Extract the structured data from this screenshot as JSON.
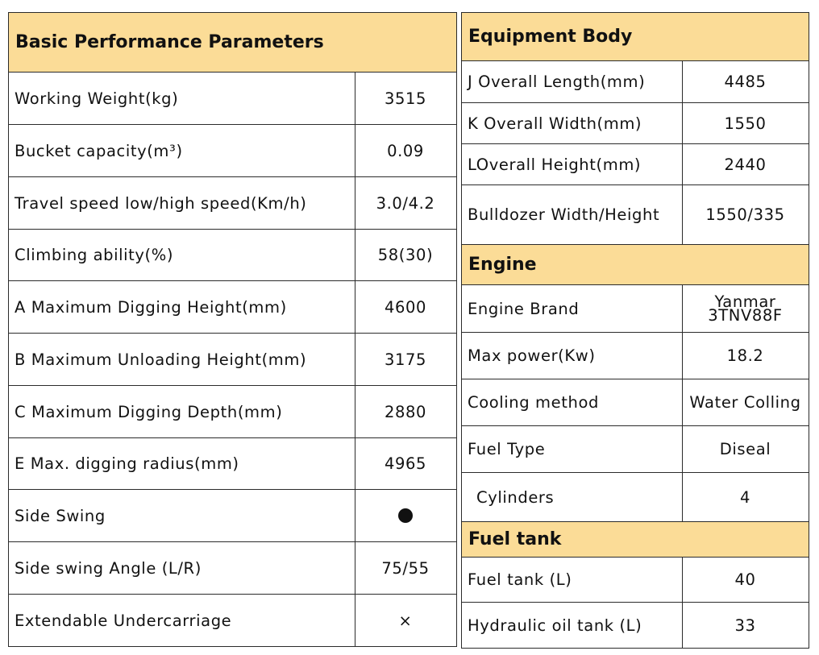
{
  "left_table": {
    "title": "Basic Performance Parameters",
    "rows": [
      {
        "label": "Working Weight(kg)",
        "value": "3515"
      },
      {
        "label": "Bucket capacity(m³)",
        "value": "0.09"
      },
      {
        "label": "Travel speed low/high speed(Km/h)",
        "value": "3.0/4.2"
      },
      {
        "label": "Climbing ability(%)",
        "value": "58(30)"
      },
      {
        "label": "A Maximum Digging Height(mm)",
        "value": "4600"
      },
      {
        "label": "B Maximum Unloading Height(mm)",
        "value": "3175"
      },
      {
        "label": "C Maximum Digging Depth(mm)",
        "value": "2880"
      },
      {
        "label": "E Max. digging radius(mm)",
        "value": "4965"
      },
      {
        "label": "Side Swing",
        "value": "●"
      },
      {
        "label": "Side swing Angle (L/R)",
        "value": "75/55"
      },
      {
        "label": "Extendable Undercarriage",
        "value": "×"
      }
    ]
  },
  "right_table": {
    "equipment_body": {
      "title": "Equipment Body",
      "rows": [
        {
          "label": "J Overall Length(mm)",
          "value": "4485"
        },
        {
          "label": "K Overall Width(mm)",
          "value": "1550"
        },
        {
          "label": "LOverall Height(mm)",
          "value": "2440"
        },
        {
          "label": "Bulldozer Width/Height",
          "value": "1550/335"
        }
      ]
    },
    "engine": {
      "title": "Engine",
      "rows": [
        {
          "label": "Engine Brand",
          "value_line1": "Yanmar",
          "value_line2": "3TNV88F"
        },
        {
          "label": "Max power(Kw)",
          "value": "18.2"
        },
        {
          "label": "Cooling method",
          "value": "Water Colling"
        },
        {
          "label": "Fuel Type",
          "value": "Diseal"
        },
        {
          "label": "Cylinders",
          "value": "4"
        }
      ]
    },
    "fuel_tank": {
      "title": "Fuel tank",
      "rows": [
        {
          "label": "Fuel tank (L)",
          "value": "40"
        },
        {
          "label": "Hydraulic oil tank (L)",
          "value": "33"
        }
      ]
    }
  },
  "colors": {
    "header_bg": "#fbdc97",
    "border": "#2b2b2b",
    "text": "#111111"
  }
}
